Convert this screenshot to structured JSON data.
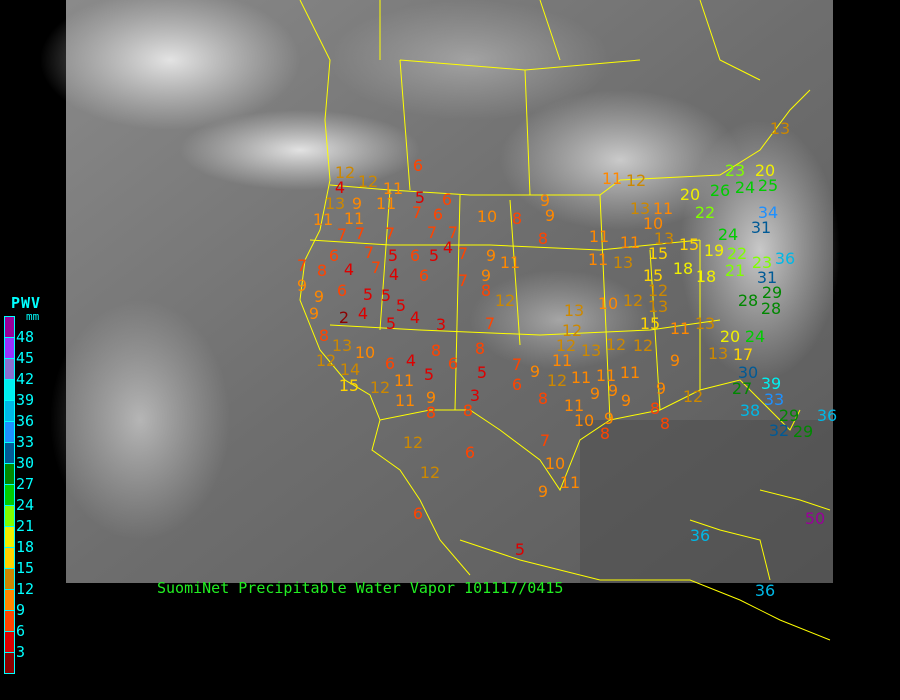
{
  "title": "SuomiNet Precipitable Water Vapor 101117/0415",
  "legend": {
    "title": "PWV",
    "unit": "mm",
    "labels": [
      "48",
      "45",
      "42",
      "39",
      "36",
      "33",
      "30",
      "27",
      "24",
      "21",
      "18",
      "15",
      "12",
      "9",
      "6",
      "3"
    ],
    "colors_top_to_bottom": [
      "#990099",
      "#9933ff",
      "#8a70d0",
      "#00f0f0",
      "#00b8e6",
      "#1e90ff",
      "#005a96",
      "#008800",
      "#00cc00",
      "#80ff00",
      "#f0f000",
      "#ffd400",
      "#cc8800",
      "#ff8800",
      "#ff4400",
      "#dd0000",
      "#8b0000"
    ]
  },
  "map": {
    "background": "infrared satellite imagery, grayscale",
    "boundary_color": "#ffff00"
  },
  "stations": [
    6,
    12,
    4,
    12,
    11,
    5,
    6,
    13,
    9,
    11,
    11,
    11,
    7,
    6,
    10,
    8,
    9,
    9,
    7,
    7,
    7,
    7,
    7,
    4,
    8,
    6,
    7,
    7,
    5,
    6,
    5,
    7,
    9,
    7,
    8,
    4,
    4,
    6,
    7,
    9,
    11,
    8,
    9,
    6,
    5,
    5,
    9,
    5,
    4,
    5,
    4,
    3,
    9,
    2,
    12,
    7,
    8,
    13,
    10,
    12,
    14,
    15,
    6,
    4,
    8,
    6,
    8,
    5,
    11,
    5,
    3,
    12,
    9,
    8,
    8,
    11,
    7,
    6,
    9,
    12,
    8,
    12,
    6,
    7,
    12,
    10,
    11,
    9,
    5,
    6,
    13,
    12,
    12,
    11,
    13,
    12,
    11,
    11,
    11,
    9,
    9,
    11,
    10,
    9,
    9,
    8,
    11,
    12,
    13,
    10,
    11,
    13,
    15,
    20,
    11,
    11,
    11,
    13,
    10,
    12,
    12,
    15,
    15,
    18,
    19,
    18,
    22,
    26,
    24,
    25,
    23,
    20,
    34,
    31,
    24,
    22,
    21,
    23,
    36,
    31,
    28,
    29,
    28,
    20,
    24,
    13,
    17,
    30,
    39,
    27,
    33,
    38,
    29,
    32,
    29,
    36,
    13,
    9,
    12,
    9,
    8,
    8,
    11,
    13,
    12,
    15,
    13,
    50,
    36,
    36
  ]
}
